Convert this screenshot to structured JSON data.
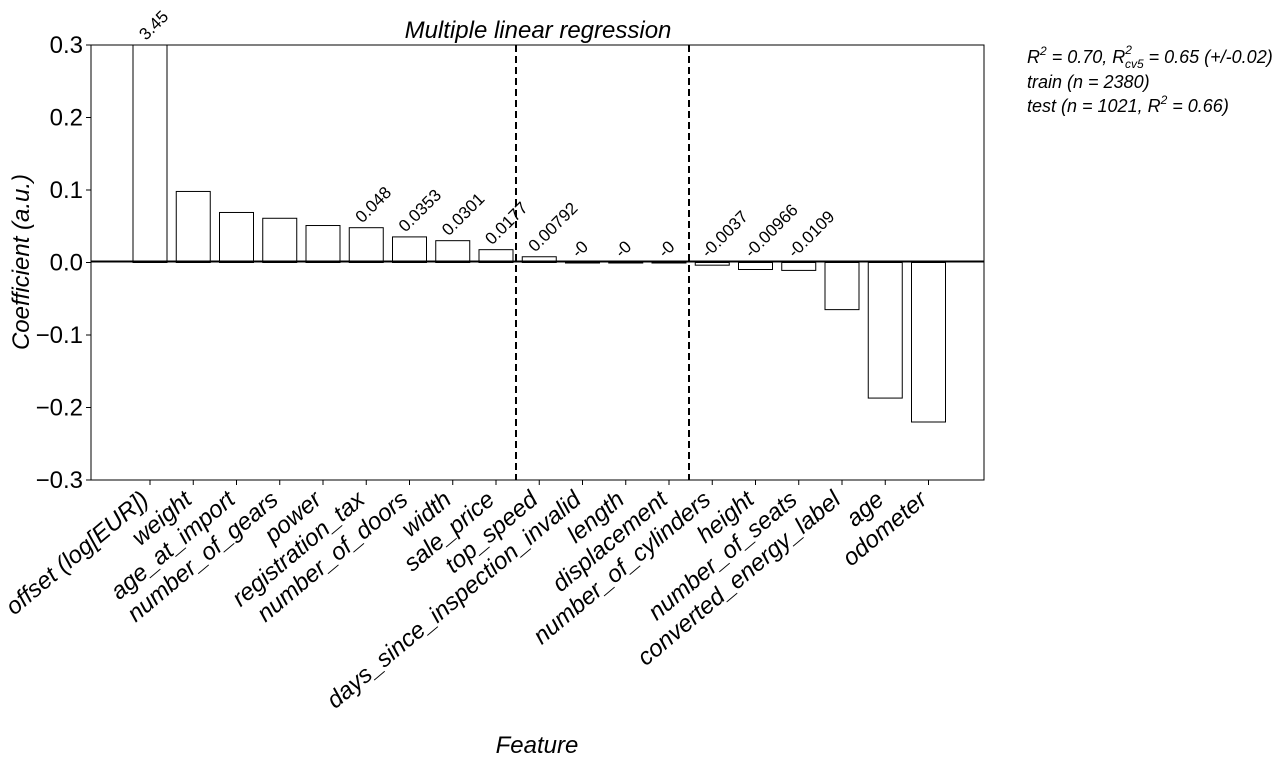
{
  "chart_data": {
    "type": "bar",
    "title": "Multiple linear regression",
    "xlabel": "Feature",
    "ylabel": "Coefficient (a.u.)",
    "ylim": [
      -0.3,
      0.3
    ],
    "yticks": [
      -0.3,
      -0.2,
      -0.1,
      0.0,
      0.1,
      0.2,
      0.3
    ],
    "ytick_labels": [
      "−0.3",
      "−0.2",
      "−0.1",
      "0.0",
      "0.1",
      "0.2",
      "0.3"
    ],
    "grid": false,
    "bar_color": "#ffffff",
    "edge_color": "#000000",
    "categories": [
      "offset (log[EUR])",
      "weight",
      "age_at_import",
      "number_of_gears",
      "power",
      "registration_tax",
      "number_of_doors",
      "width",
      "sale_price",
      "top_speed",
      "days_since_inspection_invalid",
      "length",
      "displacement",
      "number_of_cylinders",
      "height",
      "number_of_seats",
      "converted_energy_label",
      "age",
      "odometer"
    ],
    "values": [
      3.45,
      0.098,
      0.069,
      0.061,
      0.051,
      0.048,
      0.0353,
      0.0301,
      0.0177,
      0.00792,
      0,
      0,
      0,
      -0.0037,
      -0.00966,
      -0.0109,
      -0.065,
      -0.187,
      -0.22
    ],
    "bar_labels": [
      "3.45",
      "",
      "",
      "",
      "",
      "0.048",
      "0.0353",
      "0.0301",
      "0.0177",
      "0.00792",
      "-0",
      "-0",
      "-0",
      "-0.0037",
      "-0.00966",
      "-0.0109",
      "",
      "",
      ""
    ],
    "dashed_separators_after_index": [
      8,
      12
    ],
    "annotations": {
      "line1": {
        "r2_label": "R",
        "r2_sup": "2",
        "r2_value": " = 0.70, R",
        "cv_sup": "2",
        "cv_sub": "cv5",
        "cv_value": " = 0.65 (+/-0.02)"
      },
      "line2": "train (n = 2380)",
      "line3": {
        "prefix": "test (n = 1021, R",
        "sup": "2",
        "suffix": " = 0.66)"
      }
    }
  }
}
